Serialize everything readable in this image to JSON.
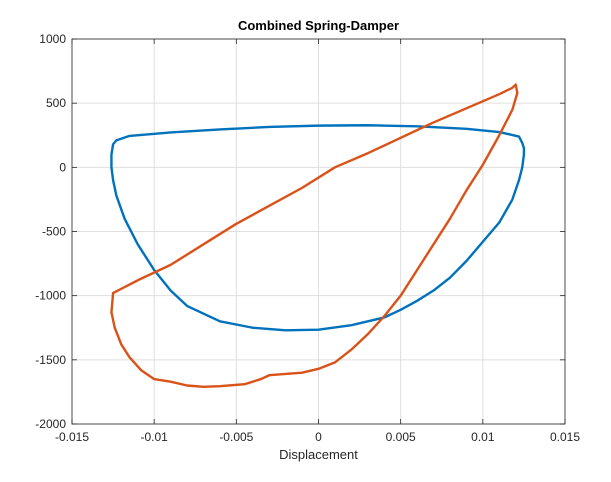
{
  "chart_data": {
    "type": "line",
    "title": "Combined Spring-Damper",
    "xlabel": "Displacement",
    "ylabel": "",
    "xlim": [
      -0.015,
      0.015
    ],
    "ylim": [
      -2000,
      1000
    ],
    "xticks": [
      -0.015,
      -0.01,
      -0.005,
      0,
      0.005,
      0.01,
      0.015
    ],
    "xtick_labels": [
      "-0.015",
      "-0.01",
      "-0.005",
      "0",
      "0.005",
      "0.01",
      "0.015"
    ],
    "yticks": [
      -2000,
      -1500,
      -1000,
      -500,
      0,
      500,
      1000
    ],
    "ytick_labels": [
      "-2000",
      "-1500",
      "-1000",
      "-500",
      "0",
      "500",
      "1000"
    ],
    "grid": true,
    "legend": "none",
    "series": [
      {
        "color": "#0072BD",
        "points": [
          [
            -0.0123,
            210
          ],
          [
            -0.0115,
            245
          ],
          [
            -0.009,
            272
          ],
          [
            -0.006,
            295
          ],
          [
            -0.003,
            315
          ],
          [
            0.0,
            325
          ],
          [
            0.003,
            328
          ],
          [
            0.006,
            320
          ],
          [
            0.009,
            300
          ],
          [
            0.011,
            275
          ],
          [
            0.0122,
            240
          ],
          [
            0.0124,
            190
          ],
          [
            0.0125,
            150
          ],
          [
            0.0125,
            100
          ],
          [
            0.0124,
            0
          ],
          [
            0.0122,
            -100
          ],
          [
            0.0118,
            -250
          ],
          [
            0.011,
            -430
          ],
          [
            0.01,
            -580
          ],
          [
            0.009,
            -730
          ],
          [
            0.008,
            -860
          ],
          [
            0.007,
            -960
          ],
          [
            0.006,
            -1040
          ],
          [
            0.005,
            -1110
          ],
          [
            0.004,
            -1170
          ],
          [
            0.002,
            -1230
          ],
          [
            0.0,
            -1265
          ],
          [
            -0.002,
            -1270
          ],
          [
            -0.004,
            -1250
          ],
          [
            -0.006,
            -1200
          ],
          [
            -0.008,
            -1080
          ],
          [
            -0.009,
            -960
          ],
          [
            -0.01,
            -800
          ],
          [
            -0.011,
            -600
          ],
          [
            -0.0118,
            -400
          ],
          [
            -0.0123,
            -220
          ],
          [
            -0.0125,
            -100
          ],
          [
            -0.0126,
            0
          ],
          [
            -0.0126,
            100
          ],
          [
            -0.0125,
            180
          ],
          [
            -0.0123,
            210
          ]
        ]
      },
      {
        "color": "#D95319",
        "points": [
          [
            -0.0125,
            -980
          ],
          [
            -0.011,
            -880
          ],
          [
            -0.009,
            -760
          ],
          [
            -0.007,
            -600
          ],
          [
            -0.005,
            -440
          ],
          [
            -0.003,
            -300
          ],
          [
            -0.001,
            -160
          ],
          [
            0.001,
            0
          ],
          [
            0.003,
            110
          ],
          [
            0.005,
            230
          ],
          [
            0.007,
            350
          ],
          [
            0.009,
            460
          ],
          [
            0.011,
            570
          ],
          [
            0.0118,
            620
          ],
          [
            0.012,
            645
          ],
          [
            0.0121,
            580
          ],
          [
            0.0118,
            450
          ],
          [
            0.011,
            250
          ],
          [
            0.01,
            20
          ],
          [
            0.009,
            -180
          ],
          [
            0.008,
            -400
          ],
          [
            0.007,
            -600
          ],
          [
            0.006,
            -800
          ],
          [
            0.005,
            -1000
          ],
          [
            0.004,
            -1160
          ],
          [
            0.003,
            -1300
          ],
          [
            0.002,
            -1420
          ],
          [
            0.001,
            -1520
          ],
          [
            0.0,
            -1570
          ],
          [
            -0.001,
            -1600
          ],
          [
            -0.002,
            -1610
          ],
          [
            -0.003,
            -1620
          ],
          [
            -0.0035,
            -1650
          ],
          [
            -0.0045,
            -1690
          ],
          [
            -0.006,
            -1705
          ],
          [
            -0.007,
            -1710
          ],
          [
            -0.008,
            -1700
          ],
          [
            -0.009,
            -1670
          ],
          [
            -0.01,
            -1650
          ],
          [
            -0.0108,
            -1580
          ],
          [
            -0.0115,
            -1480
          ],
          [
            -0.012,
            -1380
          ],
          [
            -0.0124,
            -1250
          ],
          [
            -0.0126,
            -1130
          ],
          [
            -0.0125,
            -980
          ]
        ]
      }
    ]
  }
}
